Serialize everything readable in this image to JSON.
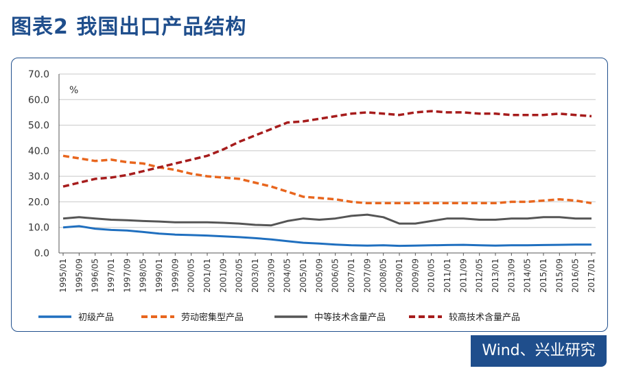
{
  "page": {
    "title": "图表2  我国出口产品结构",
    "source": "Wind、兴业研究"
  },
  "chart_data": {
    "type": "line",
    "unit_label": "%",
    "ylim": [
      0,
      70
    ],
    "yticks": [
      "0.0",
      "10.0",
      "20.0",
      "30.0",
      "40.0",
      "50.0",
      "60.0",
      "70.0"
    ],
    "x_ticks": [
      "1995/01",
      "1995/09",
      "1996/05",
      "1997/01",
      "1997/09",
      "1998/05",
      "1999/01",
      "1999/09",
      "2000/05",
      "2001/01",
      "2001/09",
      "2002/05",
      "2003/01",
      "2003/09",
      "2004/05",
      "2005/01",
      "2005/09",
      "2006/05",
      "2007/01",
      "2007/09",
      "2008/05",
      "2009/01",
      "2009/09",
      "2010/05",
      "2011/01",
      "2011/09",
      "2012/05",
      "2013/01",
      "2013/09",
      "2014/05",
      "2015/01",
      "2015/09",
      "2016/05",
      "2017/01"
    ],
    "grid": true,
    "legend_position": "bottom",
    "series": [
      {
        "name": "初级产品",
        "color": "#1f6fbf",
        "dash": "solid",
        "values": [
          10.0,
          10.5,
          9.5,
          9.0,
          8.8,
          8.2,
          7.6,
          7.2,
          7.0,
          6.8,
          6.5,
          6.2,
          5.8,
          5.3,
          4.6,
          4.0,
          3.7,
          3.3,
          3.0,
          2.9,
          3.0,
          2.8,
          2.9,
          3.0,
          3.1,
          3.2,
          3.0,
          2.9,
          3.0,
          3.0,
          3.1,
          3.2,
          3.3,
          3.3
        ]
      },
      {
        "name": "劳动密集型产品",
        "color": "#e8661e",
        "dash": "dash",
        "values": [
          38.0,
          37.0,
          36.0,
          36.5,
          35.5,
          35.0,
          33.5,
          32.5,
          31.0,
          30.0,
          29.5,
          29.0,
          27.5,
          26.0,
          24.0,
          22.0,
          21.5,
          21.0,
          20.0,
          19.5,
          19.5,
          19.5,
          19.5,
          19.5,
          19.5,
          19.5,
          19.5,
          19.5,
          20.0,
          20.0,
          20.5,
          21.0,
          20.5,
          19.5
        ]
      },
      {
        "name": "中等技术含量产品",
        "color": "#555555",
        "dash": "solid",
        "values": [
          13.5,
          14.0,
          13.5,
          13.0,
          12.8,
          12.5,
          12.3,
          12.0,
          12.0,
          12.0,
          11.8,
          11.5,
          11.0,
          10.8,
          12.5,
          13.5,
          13.0,
          13.5,
          14.5,
          15.0,
          14.0,
          11.5,
          11.5,
          12.5,
          13.5,
          13.5,
          13.0,
          13.0,
          13.5,
          13.5,
          14.0,
          14.0,
          13.5,
          13.5
        ]
      },
      {
        "name": "较高技术含量产品",
        "color": "#a61c1c",
        "dash": "dash",
        "values": [
          26.0,
          27.5,
          29.0,
          29.5,
          30.5,
          32.0,
          33.5,
          35.0,
          36.5,
          38.0,
          40.5,
          43.5,
          46.0,
          48.5,
          51.0,
          51.5,
          52.5,
          53.5,
          54.5,
          55.0,
          54.5,
          54.0,
          55.0,
          55.5,
          55.0,
          55.0,
          54.5,
          54.5,
          54.0,
          54.0,
          54.0,
          54.5,
          54.0,
          53.5
        ]
      }
    ]
  }
}
